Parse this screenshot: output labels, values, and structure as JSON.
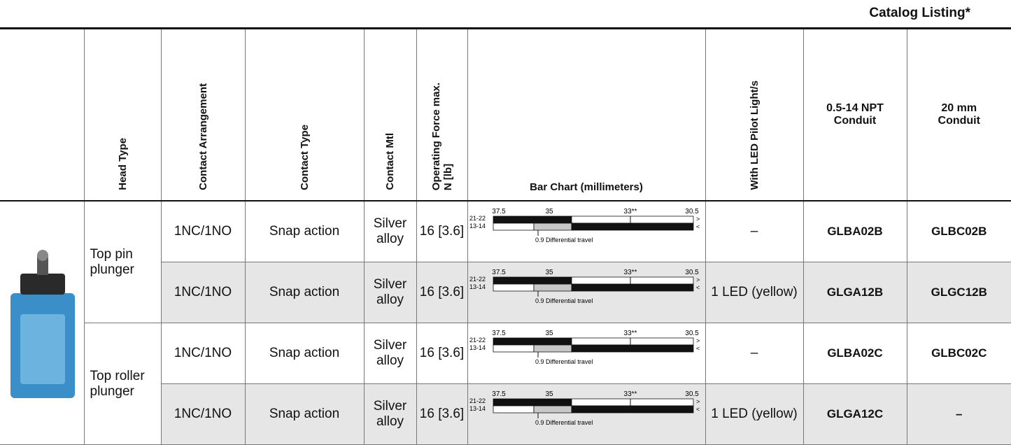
{
  "header": {
    "title": "Catalog Listing*"
  },
  "table": {
    "columns": [
      "Head Type",
      "Contact Arrangement",
      "Contact Type",
      "Contact Mtl",
      "Operating Force  max.\nN [lb]",
      "Bar Chart (millimeters)",
      "With LED Pilot Light/s",
      "0.5-14 NPT\nConduit",
      "20 mm\nConduit"
    ],
    "bar_chart": {
      "ticks": [
        "37.5",
        "35",
        "33**",
        "30.5"
      ],
      "circuits": [
        "21-22",
        "13-14"
      ],
      "arrows": [
        ">",
        "<"
      ],
      "note": "0.9 Differential travel"
    },
    "groups": [
      {
        "head_type": "Top pin plunger",
        "rows": [
          [
            "1NC/1NO",
            "Snap action",
            "Silver alloy",
            "16 [3.6]",
            "–",
            "GLBA02B",
            "GLBC02B"
          ],
          [
            "1NC/1NO",
            "Snap action",
            "Silver alloy",
            "16 [3.6]",
            "1 LED (yellow)",
            "GLGA12B",
            "GLGC12B"
          ]
        ]
      },
      {
        "head_type": "Top roller plunger",
        "rows": [
          [
            "1NC/1NO",
            "Snap action",
            "Silver alloy",
            "16 [3.6]",
            "–",
            "GLBA02C",
            "GLBC02C"
          ],
          [
            "1NC/1NO",
            "Snap action",
            "Silver alloy",
            "16 [3.6]",
            "1 LED (yellow)",
            "GLGA12C",
            "–"
          ]
        ]
      }
    ]
  }
}
